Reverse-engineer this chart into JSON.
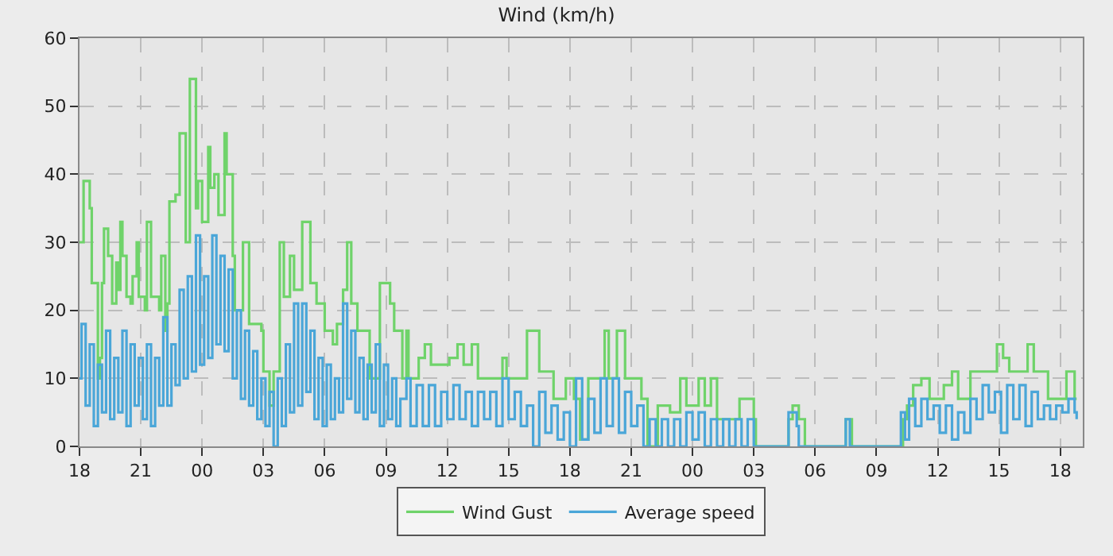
{
  "chart_data": {
    "type": "step",
    "title": "Wind (km/h)",
    "xlim": [
      "--01-01T18:00",
      "--01-03T19:06"
    ],
    "xticks": [
      {
        "value": "--01-01T18:00",
        "label": "18"
      },
      {
        "value": "--01-01T21:00",
        "label": "21"
      },
      {
        "value": "--01-02T00:00",
        "label": "00"
      },
      {
        "value": "--01-02T03:00",
        "label": "03"
      },
      {
        "value": "--01-02T06:00",
        "label": "06"
      },
      {
        "value": "--01-02T09:00",
        "label": "09"
      },
      {
        "value": "--01-02T12:00",
        "label": "12"
      },
      {
        "value": "--01-02T15:00",
        "label": "15"
      },
      {
        "value": "--01-02T18:00",
        "label": "18"
      },
      {
        "value": "--01-02T21:00",
        "label": "21"
      },
      {
        "value": "--01-03T00:00",
        "label": "00"
      },
      {
        "value": "--01-03T03:00",
        "label": "03"
      },
      {
        "value": "--01-03T06:00",
        "label": "06"
      },
      {
        "value": "--01-03T09:00",
        "label": "09"
      },
      {
        "value": "--01-03T12:00",
        "label": "12"
      },
      {
        "value": "--01-03T15:00",
        "label": "15"
      },
      {
        "value": "--01-03T18:00",
        "label": "18"
      }
    ],
    "ylim": [
      0,
      60
    ],
    "yticks": [
      0,
      10,
      20,
      30,
      40,
      50,
      60
    ],
    "grid": true,
    "legend": "bottom",
    "series": [
      {
        "name": "Wind Gust",
        "color": "#6fd36a",
        "x": [
          "--01-01T18:00",
          "--01-01T18:12",
          "--01-01T18:30",
          "--01-01T18:36",
          "--01-01T18:54",
          "--01-01T19:00",
          "--01-01T19:06",
          "--01-01T19:12",
          "--01-01T19:24",
          "--01-01T19:36",
          "--01-01T19:48",
          "--01-01T19:54",
          "--01-01T20:00",
          "--01-01T20:06",
          "--01-01T20:18",
          "--01-01T20:30",
          "--01-01T20:36",
          "--01-01T20:48",
          "--01-01T20:54",
          "--01-01T21:12",
          "--01-01T21:18",
          "--01-01T21:30",
          "--01-01T21:54",
          "--01-01T22:00",
          "--01-01T22:12",
          "--01-01T22:18",
          "--01-01T22:24",
          "--01-01T22:42",
          "--01-01T22:54",
          "--01-01T23:12",
          "--01-01T23:24",
          "--01-01T23:42",
          "--01-01T23:48",
          "--01-02T00:00",
          "--01-02T00:18",
          "--01-02T00:24",
          "--01-02T00:36",
          "--01-02T00:48",
          "--01-02T01:06",
          "--01-02T01:12",
          "--01-02T01:30",
          "--01-02T01:36",
          "--01-02T02:00",
          "--01-02T02:18",
          "--01-02T02:54",
          "--01-02T03:00",
          "--01-02T03:18",
          "--01-02T03:30",
          "--01-02T03:48",
          "--01-02T04:00",
          "--01-02T04:18",
          "--01-02T04:30",
          "--01-02T04:54",
          "--01-02T05:18",
          "--01-02T05:36",
          "--01-02T06:00",
          "--01-02T06:24",
          "--01-02T06:36",
          "--01-02T06:54",
          "--01-02T07:06",
          "--01-02T07:18",
          "--01-02T07:36",
          "--01-02T08:12",
          "--01-02T08:42",
          "--01-02T09:12",
          "--01-02T09:24",
          "--01-02T09:48",
          "--01-02T10:00",
          "--01-02T10:06",
          "--01-02T10:36",
          "--01-02T10:54",
          "--01-02T11:12",
          "--01-02T12:06",
          "--01-02T12:30",
          "--01-02T12:48",
          "--01-02T13:12",
          "--01-02T13:30",
          "--01-02T14:42",
          "--01-02T14:54",
          "--01-02T15:54",
          "--01-02T16:30",
          "--01-02T17:12",
          "--01-02T17:48",
          "--01-02T18:12",
          "--01-02T18:30",
          "--01-02T18:54",
          "--01-02T19:42",
          "--01-02T19:54",
          "--01-02T20:18",
          "--01-02T20:42",
          "--01-02T21:30",
          "--01-02T21:48",
          "--01-02T22:18",
          "--01-02T22:54",
          "--01-02T23:24",
          "--01-02T23:42",
          "--01-03T00:18",
          "--01-03T00:36",
          "--01-03T00:54",
          "--01-03T01:12",
          "--01-03T02:18",
          "--01-03T03:00",
          "--01-03T03:06",
          "--01-03T04:42",
          "--01-03T04:54",
          "--01-03T05:12",
          "--01-03T05:30",
          "--01-03T07:30",
          "--01-03T07:48",
          "--01-03T10:12",
          "--01-03T10:18",
          "--01-03T10:30",
          "--01-03T10:48",
          "--01-03T11:12",
          "--01-03T11:36",
          "--01-03T12:18",
          "--01-03T12:42",
          "--01-03T13:00",
          "--01-03T13:36",
          "--01-03T14:54",
          "--01-03T15:12",
          "--01-03T15:30",
          "--01-03T16:24",
          "--01-03T16:42",
          "--01-03T17:24",
          "--01-03T18:18",
          "--01-03T18:42",
          "--01-03T18:48"
        ],
        "values": [
          30,
          39,
          35,
          24,
          10,
          13,
          24,
          32,
          28,
          21,
          27,
          23,
          33,
          28,
          22,
          21,
          25,
          30,
          22,
          20,
          33,
          22,
          20,
          28,
          17,
          21,
          36,
          37,
          46,
          30,
          54,
          35,
          39,
          33,
          44,
          38,
          40,
          34,
          46,
          40,
          28,
          20,
          30,
          18,
          17,
          11,
          6,
          11,
          30,
          22,
          28,
          23,
          33,
          24,
          21,
          17,
          15,
          18,
          23,
          30,
          21,
          17,
          10,
          24,
          21,
          17,
          10,
          17,
          10,
          13,
          15,
          12,
          13,
          15,
          12,
          15,
          10,
          13,
          10,
          17,
          11,
          7,
          10,
          7,
          1,
          10,
          17,
          10,
          17,
          10,
          7,
          0,
          6,
          5,
          10,
          6,
          10,
          6,
          10,
          4,
          7,
          4,
          0,
          4,
          6,
          4,
          0,
          4,
          0,
          0,
          4,
          6,
          9,
          10,
          7,
          9,
          11,
          7,
          11,
          15,
          13,
          11,
          15,
          11,
          7,
          11,
          7,
          7
        ]
      },
      {
        "name": "Average speed",
        "color": "#4aa6d8",
        "x": [
          "--01-01T18:00",
          "--01-01T18:06",
          "--01-01T18:18",
          "--01-01T18:30",
          "--01-01T18:42",
          "--01-01T18:54",
          "--01-01T19:06",
          "--01-01T19:18",
          "--01-01T19:30",
          "--01-01T19:42",
          "--01-01T19:54",
          "--01-01T20:06",
          "--01-01T20:18",
          "--01-01T20:30",
          "--01-01T20:42",
          "--01-01T20:54",
          "--01-01T21:06",
          "--01-01T21:18",
          "--01-01T21:30",
          "--01-01T21:42",
          "--01-01T21:54",
          "--01-01T22:06",
          "--01-01T22:18",
          "--01-01T22:30",
          "--01-01T22:42",
          "--01-01T22:54",
          "--01-01T23:06",
          "--01-01T23:18",
          "--01-01T23:30",
          "--01-01T23:42",
          "--01-01T23:54",
          "--01-02T00:06",
          "--01-02T00:18",
          "--01-02T00:30",
          "--01-02T00:42",
          "--01-02T00:54",
          "--01-02T01:06",
          "--01-02T01:18",
          "--01-02T01:30",
          "--01-02T01:42",
          "--01-02T01:54",
          "--01-02T02:06",
          "--01-02T02:18",
          "--01-02T02:30",
          "--01-02T02:42",
          "--01-02T02:54",
          "--01-02T03:06",
          "--01-02T03:18",
          "--01-02T03:30",
          "--01-02T03:42",
          "--01-02T03:54",
          "--01-02T04:06",
          "--01-02T04:18",
          "--01-02T04:30",
          "--01-02T04:42",
          "--01-02T04:54",
          "--01-02T05:06",
          "--01-02T05:18",
          "--01-02T05:30",
          "--01-02T05:42",
          "--01-02T05:54",
          "--01-02T06:06",
          "--01-02T06:18",
          "--01-02T06:30",
          "--01-02T06:42",
          "--01-02T06:54",
          "--01-02T07:06",
          "--01-02T07:18",
          "--01-02T07:30",
          "--01-02T07:42",
          "--01-02T07:54",
          "--01-02T08:06",
          "--01-02T08:18",
          "--01-02T08:30",
          "--01-02T08:42",
          "--01-02T08:54",
          "--01-02T09:06",
          "--01-02T09:18",
          "--01-02T09:30",
          "--01-02T09:42",
          "--01-02T10:00",
          "--01-02T10:12",
          "--01-02T10:30",
          "--01-02T10:48",
          "--01-02T11:06",
          "--01-02T11:24",
          "--01-02T11:42",
          "--01-02T12:00",
          "--01-02T12:18",
          "--01-02T12:36",
          "--01-02T12:54",
          "--01-02T13:12",
          "--01-02T13:30",
          "--01-02T13:48",
          "--01-02T14:06",
          "--01-02T14:24",
          "--01-02T14:42",
          "--01-02T15:00",
          "--01-02T15:18",
          "--01-02T15:36",
          "--01-02T15:54",
          "--01-02T16:12",
          "--01-02T16:30",
          "--01-02T16:48",
          "--01-02T17:06",
          "--01-02T17:24",
          "--01-02T17:42",
          "--01-02T18:00",
          "--01-02T18:18",
          "--01-02T18:36",
          "--01-02T18:54",
          "--01-02T19:12",
          "--01-02T19:30",
          "--01-02T19:48",
          "--01-02T20:06",
          "--01-02T20:24",
          "--01-02T20:42",
          "--01-02T21:00",
          "--01-02T21:18",
          "--01-02T21:36",
          "--01-02T21:54",
          "--01-02T22:12",
          "--01-02T22:30",
          "--01-02T22:48",
          "--01-02T23:06",
          "--01-02T23:24",
          "--01-02T23:42",
          "--01-03T00:00",
          "--01-03T00:18",
          "--01-03T00:36",
          "--01-03T00:54",
          "--01-03T01:12",
          "--01-03T01:30",
          "--01-03T01:48",
          "--01-03T02:06",
          "--01-03T02:24",
          "--01-03T02:42",
          "--01-03T03:00",
          "--01-03T04:42",
          "--01-03T05:06",
          "--01-03T05:12",
          "--01-03T07:30",
          "--01-03T07:42",
          "--01-03T10:12",
          "--01-03T10:24",
          "--01-03T10:36",
          "--01-03T10:54",
          "--01-03T11:12",
          "--01-03T11:30",
          "--01-03T11:48",
          "--01-03T12:06",
          "--01-03T12:24",
          "--01-03T12:42",
          "--01-03T13:00",
          "--01-03T13:18",
          "--01-03T13:36",
          "--01-03T13:54",
          "--01-03T14:12",
          "--01-03T14:30",
          "--01-03T14:48",
          "--01-03T15:06",
          "--01-03T15:24",
          "--01-03T15:42",
          "--01-03T16:00",
          "--01-03T16:18",
          "--01-03T16:36",
          "--01-03T16:54",
          "--01-03T17:12",
          "--01-03T17:30",
          "--01-03T17:48",
          "--01-03T18:06",
          "--01-03T18:24",
          "--01-03T18:42",
          "--01-03T18:48"
        ],
        "values": [
          10,
          18,
          6,
          15,
          3,
          12,
          5,
          17,
          4,
          13,
          5,
          17,
          3,
          15,
          6,
          13,
          4,
          15,
          3,
          13,
          6,
          19,
          6,
          15,
          9,
          23,
          10,
          25,
          11,
          31,
          12,
          25,
          13,
          31,
          15,
          28,
          14,
          26,
          10,
          20,
          7,
          17,
          6,
          14,
          4,
          10,
          3,
          8,
          0,
          10,
          3,
          15,
          5,
          21,
          6,
          21,
          8,
          17,
          4,
          13,
          3,
          12,
          4,
          10,
          5,
          21,
          7,
          17,
          5,
          13,
          4,
          12,
          5,
          15,
          3,
          12,
          4,
          10,
          3,
          7,
          10,
          3,
          9,
          3,
          9,
          3,
          8,
          4,
          9,
          4,
          8,
          3,
          8,
          4,
          8,
          3,
          10,
          4,
          8,
          3,
          6,
          0,
          8,
          2,
          6,
          1,
          5,
          0,
          10,
          1,
          7,
          2,
          10,
          3,
          10,
          2,
          8,
          3,
          6,
          0,
          4,
          0,
          4,
          0,
          4,
          0,
          5,
          1,
          5,
          0,
          4,
          0,
          4,
          0,
          4,
          0,
          4,
          0,
          5,
          3,
          0,
          4,
          0,
          5,
          1,
          7,
          3,
          7,
          4,
          6,
          2,
          6,
          1,
          5,
          2,
          7,
          4,
          9,
          5,
          8,
          2,
          9,
          4,
          9,
          3,
          8,
          4,
          6,
          4,
          6,
          5,
          7,
          5,
          4
        ]
      }
    ]
  }
}
